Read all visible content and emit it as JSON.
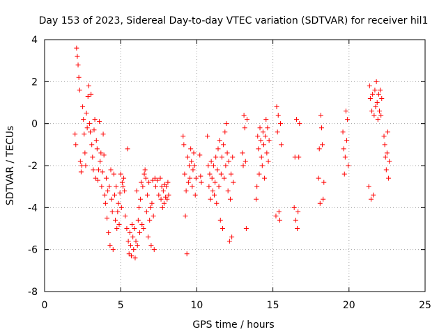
{
  "chart_data": {
    "type": "scatter",
    "title": "Day 153 of 2023, Sidereal Day-to-day VTEC variation (SDTVAR) for receiver hil1",
    "xlabel": "GPS time / hours",
    "ylabel": "SDTVAR / TECUs",
    "xlim": [
      0,
      25
    ],
    "ylim": [
      -8,
      4
    ],
    "xticks": [
      0,
      5,
      10,
      15,
      20,
      25
    ],
    "xtick_labels": [
      "0",
      "5",
      "10",
      "15",
      "20",
      "25"
    ],
    "yticks": [
      -8,
      -6,
      -4,
      -2,
      0,
      2,
      4
    ],
    "ytick_labels": [
      "-8",
      "-6",
      "-4",
      "-2",
      "0",
      "2",
      "4"
    ],
    "grid": true,
    "marker": "+",
    "color": "#ff0000",
    "series": [
      {
        "name": "SDTVAR",
        "points": [
          [
            2.0,
            -0.5
          ],
          [
            2.05,
            -1.0
          ],
          [
            2.1,
            3.6
          ],
          [
            2.15,
            3.2
          ],
          [
            2.2,
            2.8
          ],
          [
            2.25,
            2.2
          ],
          [
            2.3,
            1.6
          ],
          [
            2.35,
            -1.8
          ],
          [
            2.4,
            -2.3
          ],
          [
            2.45,
            -2.0
          ],
          [
            2.5,
            0.8
          ],
          [
            2.55,
            0.2
          ],
          [
            2.6,
            -0.5
          ],
          [
            2.65,
            -1.4
          ],
          [
            2.7,
            -2.0
          ],
          [
            2.75,
            0.5
          ],
          [
            2.8,
            -0.2
          ],
          [
            2.85,
            1.3
          ],
          [
            2.9,
            1.8
          ],
          [
            2.95,
            0.0
          ],
          [
            3.0,
            -0.4
          ],
          [
            3.05,
            1.4
          ],
          [
            3.1,
            -1.0
          ],
          [
            3.15,
            -1.6
          ],
          [
            3.2,
            -2.2
          ],
          [
            3.25,
            -0.3
          ],
          [
            3.3,
            0.2
          ],
          [
            3.35,
            -2.6
          ],
          [
            3.4,
            -0.8
          ],
          [
            3.45,
            -1.2
          ],
          [
            3.5,
            -2.7
          ],
          [
            3.55,
            -2.2
          ],
          [
            3.6,
            0.1
          ],
          [
            3.65,
            -1.8
          ],
          [
            3.7,
            -1.4
          ],
          [
            3.75,
            -3.0
          ],
          [
            3.8,
            -2.3
          ],
          [
            3.85,
            -0.5
          ],
          [
            3.9,
            -1.5
          ],
          [
            3.95,
            -3.4
          ],
          [
            4.0,
            -3.8
          ],
          [
            4.05,
            -2.6
          ],
          [
            4.1,
            -4.5
          ],
          [
            4.15,
            -3.2
          ],
          [
            4.2,
            -5.2
          ],
          [
            4.25,
            -3.0
          ],
          [
            4.3,
            -5.8
          ],
          [
            4.35,
            -2.2
          ],
          [
            4.4,
            -3.6
          ],
          [
            4.45,
            -4.2
          ],
          [
            4.5,
            -6.0
          ],
          [
            4.55,
            -2.4
          ],
          [
            4.6,
            -3.4
          ],
          [
            4.65,
            -4.6
          ],
          [
            4.7,
            -3.0
          ],
          [
            4.75,
            -5.0
          ],
          [
            4.8,
            -4.2
          ],
          [
            4.85,
            -3.8
          ],
          [
            4.9,
            -4.8
          ],
          [
            4.95,
            -3.3
          ],
          [
            5.0,
            -2.4
          ],
          [
            5.05,
            -4.0
          ],
          [
            5.1,
            -2.8
          ],
          [
            5.15,
            -3.0
          ],
          [
            5.2,
            -2.6
          ],
          [
            5.25,
            -3.2
          ],
          [
            5.3,
            -4.4
          ],
          [
            5.4,
            -5.0
          ],
          [
            5.45,
            -1.2
          ],
          [
            5.5,
            -5.6
          ],
          [
            5.55,
            -6.2
          ],
          [
            5.6,
            -5.2
          ],
          [
            5.65,
            -5.8
          ],
          [
            5.7,
            -6.3
          ],
          [
            5.75,
            -4.8
          ],
          [
            5.8,
            -5.4
          ],
          [
            5.85,
            -6.0
          ],
          [
            5.9,
            -5.0
          ],
          [
            5.95,
            -6.4
          ],
          [
            6.0,
            -5.6
          ],
          [
            6.05,
            -3.2
          ],
          [
            6.1,
            -5.8
          ],
          [
            6.15,
            -4.6
          ],
          [
            6.2,
            -4.0
          ],
          [
            6.25,
            -5.2
          ],
          [
            6.3,
            -3.6
          ],
          [
            6.35,
            -2.8
          ],
          [
            6.4,
            -4.8
          ],
          [
            6.45,
            -3.0
          ],
          [
            6.5,
            -5.0
          ],
          [
            6.55,
            -2.4
          ],
          [
            6.6,
            -2.2
          ],
          [
            6.65,
            -2.6
          ],
          [
            6.7,
            -4.2
          ],
          [
            6.75,
            -3.4
          ],
          [
            6.8,
            -5.4
          ],
          [
            6.85,
            -2.8
          ],
          [
            6.9,
            -4.6
          ],
          [
            6.95,
            -4.0
          ],
          [
            7.0,
            -5.8
          ],
          [
            7.05,
            -3.8
          ],
          [
            7.1,
            -2.7
          ],
          [
            7.15,
            -4.4
          ],
          [
            7.2,
            -6.0
          ],
          [
            7.25,
            -2.6
          ],
          [
            7.3,
            -3.0
          ],
          [
            7.4,
            -2.7
          ],
          [
            7.5,
            -3.4
          ],
          [
            7.6,
            -2.6
          ],
          [
            7.65,
            -3.6
          ],
          [
            7.7,
            -3.0
          ],
          [
            7.75,
            -4.0
          ],
          [
            7.8,
            -3.2
          ],
          [
            7.85,
            -3.8
          ],
          [
            7.9,
            -2.9
          ],
          [
            7.95,
            -3.5
          ],
          [
            8.0,
            -3.0
          ],
          [
            8.05,
            -3.6
          ],
          [
            8.1,
            -2.8
          ],
          [
            8.15,
            -3.4
          ],
          [
            9.1,
            -0.6
          ],
          [
            9.15,
            -1.0
          ],
          [
            9.2,
            -2.4
          ],
          [
            9.25,
            -4.4
          ],
          [
            9.3,
            -3.2
          ],
          [
            9.35,
            -6.2
          ],
          [
            9.4,
            -1.6
          ],
          [
            9.45,
            -2.8
          ],
          [
            9.5,
            -2.0
          ],
          [
            9.55,
            -2.6
          ],
          [
            9.6,
            -1.2
          ],
          [
            9.65,
            -1.8
          ],
          [
            9.7,
            -3.0
          ],
          [
            9.75,
            -2.2
          ],
          [
            9.8,
            -1.4
          ],
          [
            9.85,
            -2.0
          ],
          [
            9.9,
            -3.4
          ],
          [
            9.95,
            -2.6
          ],
          [
            10.2,
            -1.5
          ],
          [
            10.25,
            -2.5
          ],
          [
            10.3,
            -2.8
          ],
          [
            10.7,
            -0.6
          ],
          [
            10.75,
            -2.0
          ],
          [
            10.8,
            -3.0
          ],
          [
            10.85,
            -2.4
          ],
          [
            10.9,
            -3.6
          ],
          [
            10.95,
            -1.8
          ],
          [
            11.0,
            -2.6
          ],
          [
            11.05,
            -3.2
          ],
          [
            11.1,
            -2.0
          ],
          [
            11.15,
            -3.4
          ],
          [
            11.2,
            -2.8
          ],
          [
            11.25,
            -1.6
          ],
          [
            11.3,
            -3.8
          ],
          [
            11.35,
            -2.2
          ],
          [
            11.4,
            -1.2
          ],
          [
            11.45,
            -3.0
          ],
          [
            11.5,
            -0.8
          ],
          [
            11.55,
            -4.6
          ],
          [
            11.6,
            -2.4
          ],
          [
            11.65,
            -1.6
          ],
          [
            11.7,
            -5.0
          ],
          [
            11.75,
            -1.0
          ],
          [
            11.8,
            -2.6
          ],
          [
            11.85,
            -0.4
          ],
          [
            11.9,
            -2.0
          ],
          [
            11.95,
            0.0
          ],
          [
            12.0,
            -1.4
          ],
          [
            12.05,
            -3.2
          ],
          [
            12.1,
            -1.8
          ],
          [
            12.15,
            -5.6
          ],
          [
            12.2,
            -3.6
          ],
          [
            12.25,
            -2.4
          ],
          [
            12.3,
            -5.4
          ],
          [
            12.35,
            -1.6
          ],
          [
            12.4,
            -2.8
          ],
          [
            13.0,
            -1.4
          ],
          [
            13.05,
            -2.0
          ],
          [
            13.1,
            0.4
          ],
          [
            13.15,
            -0.2
          ],
          [
            13.2,
            -1.8
          ],
          [
            13.25,
            -5.0
          ],
          [
            13.3,
            0.2
          ],
          [
            13.9,
            -3.6
          ],
          [
            13.95,
            -3.0
          ],
          [
            14.0,
            -0.6
          ],
          [
            14.05,
            -1.2
          ],
          [
            14.1,
            -2.4
          ],
          [
            14.15,
            -0.2
          ],
          [
            14.2,
            -0.8
          ],
          [
            14.25,
            -1.6
          ],
          [
            14.3,
            -2.0
          ],
          [
            14.35,
            -0.4
          ],
          [
            14.4,
            -1.0
          ],
          [
            14.45,
            -2.6
          ],
          [
            14.5,
            -0.6
          ],
          [
            14.55,
            0.2
          ],
          [
            14.6,
            -1.4
          ],
          [
            14.65,
            -0.2
          ],
          [
            14.7,
            -1.8
          ],
          [
            14.75,
            -0.8
          ],
          [
            15.2,
            -4.4
          ],
          [
            15.25,
            0.8
          ],
          [
            15.3,
            -0.4
          ],
          [
            15.35,
            0.4
          ],
          [
            15.4,
            -4.2
          ],
          [
            15.45,
            -4.6
          ],
          [
            15.5,
            0.0
          ],
          [
            15.55,
            -1.0
          ],
          [
            16.4,
            -4.0
          ],
          [
            16.45,
            -1.6
          ],
          [
            16.5,
            -4.6
          ],
          [
            16.55,
            0.2
          ],
          [
            16.6,
            -5.0
          ],
          [
            16.65,
            -4.2
          ],
          [
            16.7,
            -1.6
          ],
          [
            16.75,
            0.0
          ],
          [
            18.0,
            -2.6
          ],
          [
            18.05,
            -1.2
          ],
          [
            18.1,
            -3.8
          ],
          [
            18.15,
            0.4
          ],
          [
            18.2,
            -0.2
          ],
          [
            18.25,
            -1.0
          ],
          [
            18.3,
            -3.6
          ],
          [
            18.35,
            -2.8
          ],
          [
            19.6,
            -0.4
          ],
          [
            19.65,
            -1.2
          ],
          [
            19.7,
            -2.4
          ],
          [
            19.75,
            -1.6
          ],
          [
            19.8,
            0.6
          ],
          [
            19.85,
            -0.8
          ],
          [
            19.9,
            0.2
          ],
          [
            19.95,
            -2.0
          ],
          [
            21.3,
            -3.0
          ],
          [
            21.35,
            1.8
          ],
          [
            21.4,
            1.2
          ],
          [
            21.45,
            -3.6
          ],
          [
            21.5,
            0.6
          ],
          [
            21.55,
            1.4
          ],
          [
            21.6,
            -3.4
          ],
          [
            21.65,
            0.4
          ],
          [
            21.7,
            1.6
          ],
          [
            21.75,
            0.8
          ],
          [
            21.8,
            2.0
          ],
          [
            21.85,
            1.0
          ],
          [
            21.9,
            0.2
          ],
          [
            21.95,
            1.4
          ],
          [
            22.0,
            0.6
          ],
          [
            22.05,
            1.6
          ],
          [
            22.1,
            0.4
          ],
          [
            22.15,
            1.2
          ],
          [
            22.3,
            -0.6
          ],
          [
            22.35,
            -1.0
          ],
          [
            22.4,
            -1.6
          ],
          [
            22.45,
            -2.2
          ],
          [
            22.5,
            -1.4
          ],
          [
            22.55,
            -0.4
          ],
          [
            22.6,
            -2.6
          ],
          [
            22.65,
            -1.8
          ]
        ]
      }
    ]
  }
}
